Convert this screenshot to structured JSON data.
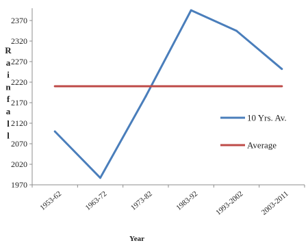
{
  "chart_data": {
    "type": "line",
    "categories": [
      "1953-62",
      "1963-72",
      "1973-82",
      "1983-92",
      "1993-2002",
      "2003-2011"
    ],
    "series": [
      {
        "name": "10 Yrs. Av.",
        "color": "#4a7ebb",
        "values": [
          2100,
          1987,
          2185,
          2395,
          2345,
          2252
        ]
      },
      {
        "name": "Average",
        "color": "#be4b48",
        "values": [
          2210,
          2210,
          2210,
          2210,
          2210,
          2210
        ]
      }
    ],
    "ylim": [
      1970,
      2400
    ],
    "yticks": [
      1970,
      2020,
      2070,
      2120,
      2170,
      2220,
      2270,
      2320,
      2370
    ],
    "ylabel": "Rainfall",
    "xlabel": "Year",
    "legend_position": "right",
    "grid": false
  }
}
